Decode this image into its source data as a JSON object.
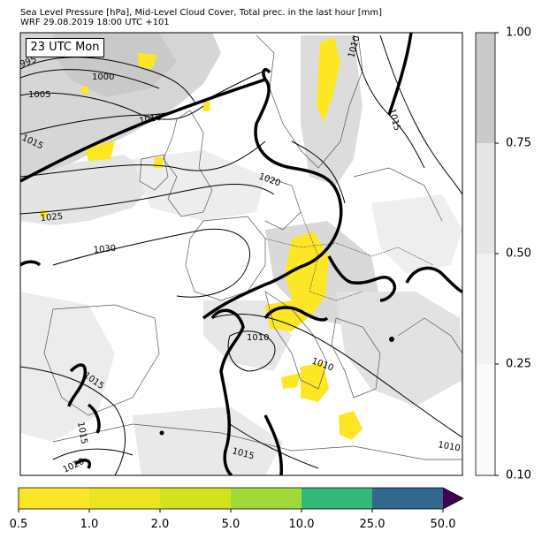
{
  "header": {
    "title_line1": "Sea Level Pressure [hPa], Mid-Level Cloud Cover, Total prec. in the last hour [mm]",
    "title_line2": "WRF 29.08.2019 18:00 UTC +101"
  },
  "map": {
    "time_badge": "23 UTC Mon",
    "isobar_labels": [
      {
        "id": "iso-995",
        "text": "995"
      },
      {
        "id": "iso-1000",
        "text": "1000"
      },
      {
        "id": "iso-1005",
        "text": "1005"
      },
      {
        "id": "iso-1010-a",
        "text": "1010"
      },
      {
        "id": "iso-1015-a",
        "text": "1015"
      },
      {
        "id": "iso-1010-b",
        "text": "1010"
      },
      {
        "id": "iso-1015-b",
        "text": "1015"
      },
      {
        "id": "iso-1020-a",
        "text": "1020"
      },
      {
        "id": "iso-1025",
        "text": "1025"
      },
      {
        "id": "iso-1030",
        "text": "1030"
      },
      {
        "id": "iso-1010-c",
        "text": "1010"
      },
      {
        "id": "iso-1010-d",
        "text": "1010"
      },
      {
        "id": "iso-1015-c",
        "text": "1015"
      },
      {
        "id": "iso-1015-d",
        "text": "1015"
      },
      {
        "id": "iso-1015-e",
        "text": "1015"
      },
      {
        "id": "iso-1020-b",
        "text": "1020"
      },
      {
        "id": "iso-1010-e",
        "text": "1010"
      }
    ]
  },
  "colors": {
    "cloud_low": "#f2f2f2",
    "cloud_mid": "#e0e0e0",
    "cloud_high": "#c9c9c9",
    "precip_yellow": "#fde725",
    "isobar": "#000000",
    "frame": "#000000",
    "border": "#555555"
  },
  "cloud_colorbar": {
    "ticks": [
      "1.00",
      "0.75",
      "0.50",
      "0.25",
      "0.10"
    ],
    "colors": [
      "#c9c9c9",
      "#e6e6e6",
      "#f2f2f2",
      "#fafafa"
    ]
  },
  "precip_colorbar": {
    "ticks": [
      "0.5",
      "1.0",
      "2.0",
      "5.0",
      "10.0",
      "25.0",
      "50.0"
    ],
    "colors": [
      "#fde725",
      "#ece51b",
      "#d2e21b",
      "#a0da39",
      "#35b779",
      "#31688e",
      "#440154"
    ]
  }
}
